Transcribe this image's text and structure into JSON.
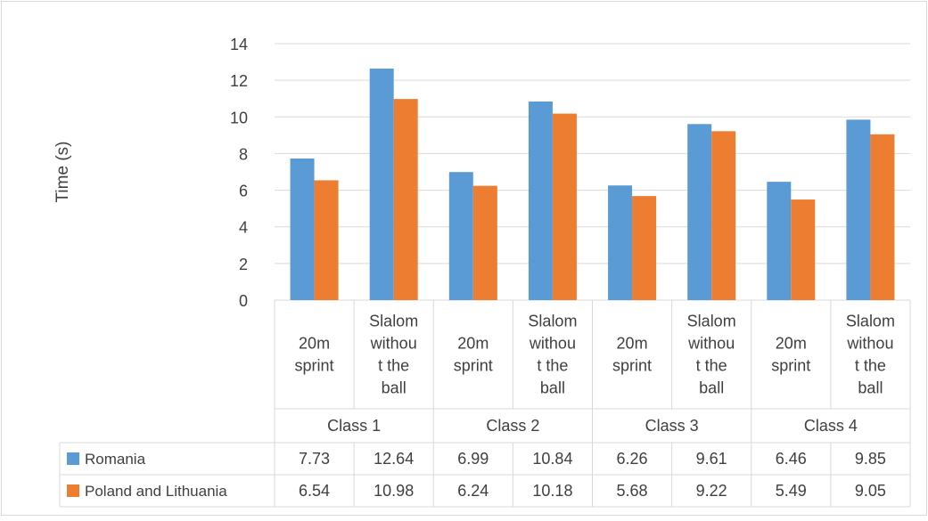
{
  "chart_data": {
    "type": "bar",
    "ylabel": "Time (s)",
    "ylim": [
      0,
      14
    ],
    "yticks": [
      "0",
      "2",
      "4",
      "6",
      "8",
      "10",
      "12",
      "14"
    ],
    "grid": true,
    "legend": "data-table-left",
    "groups": [
      "Class 1",
      "Class 2",
      "Class 3",
      "Class 4"
    ],
    "categories": [
      {
        "group": "Class 1",
        "lines": [
          "20m",
          "sprint"
        ]
      },
      {
        "group": "Class 1",
        "lines": [
          "Slalom",
          "withou",
          "t the",
          "ball"
        ]
      },
      {
        "group": "Class 2",
        "lines": [
          "20m",
          "sprint"
        ]
      },
      {
        "group": "Class 2",
        "lines": [
          "Slalom",
          "withou",
          "t the",
          "ball"
        ]
      },
      {
        "group": "Class 3",
        "lines": [
          "20m",
          "sprint"
        ]
      },
      {
        "group": "Class 3",
        "lines": [
          "Slalom",
          "withou",
          "t the",
          "ball"
        ]
      },
      {
        "group": "Class 4",
        "lines": [
          "20m",
          "sprint"
        ]
      },
      {
        "group": "Class 4",
        "lines": [
          "Slalom",
          "withou",
          "t the",
          "ball"
        ]
      }
    ],
    "series": [
      {
        "name": "Romania",
        "color": "#5B9BD5",
        "values": [
          7.73,
          12.64,
          6.99,
          10.84,
          6.26,
          9.61,
          6.46,
          9.85
        ],
        "labels": [
          "7.73",
          "12.64",
          "6.99",
          "10.84",
          "6.26",
          "9.61",
          "6.46",
          "9.85"
        ]
      },
      {
        "name": "Poland and Lithuania",
        "color": "#ED7D31",
        "values": [
          6.54,
          10.98,
          6.24,
          10.18,
          5.68,
          9.22,
          5.49,
          9.05
        ],
        "labels": [
          "6.54",
          "10.98",
          "6.24",
          "10.18",
          "5.68",
          "9.22",
          "5.49",
          "9.05"
        ]
      }
    ]
  }
}
